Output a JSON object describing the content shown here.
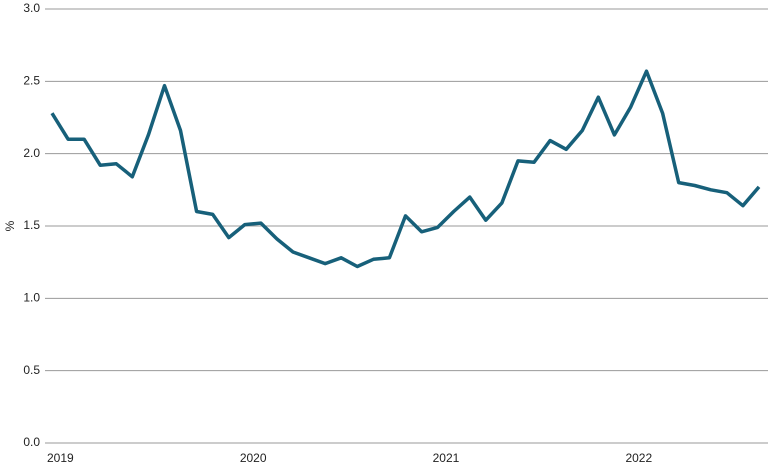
{
  "chart_data": {
    "type": "line",
    "y_label": "%",
    "categories": [
      "2019",
      null,
      null,
      null,
      null,
      null,
      null,
      null,
      null,
      null,
      null,
      null,
      "2020",
      null,
      null,
      null,
      null,
      null,
      null,
      null,
      null,
      null,
      null,
      null,
      "2021",
      null,
      null,
      null,
      null,
      null,
      null,
      null,
      null,
      null,
      null,
      null,
      "2022",
      null,
      null,
      null,
      null,
      null,
      null,
      null,
      null
    ],
    "series": [
      {
        "color": "#17607a",
        "values": [
          2.28,
          2.1,
          2.1,
          1.92,
          1.93,
          1.84,
          2.13,
          2.47,
          2.16,
          1.6,
          1.58,
          1.42,
          1.51,
          1.52,
          1.41,
          1.32,
          1.28,
          1.24,
          1.28,
          1.22,
          1.27,
          1.28,
          1.57,
          1.46,
          1.49,
          1.6,
          1.7,
          1.54,
          1.66,
          1.95,
          1.94,
          2.09,
          2.03,
          2.16,
          2.39,
          2.13,
          2.32,
          2.57,
          2.28,
          1.8,
          1.78,
          1.75,
          1.73,
          1.64,
          1.77
        ]
      }
    ],
    "ylim": [
      0,
      3
    ],
    "yticks": [
      {
        "value": 0,
        "label": "0.0"
      },
      {
        "value": 0.5,
        "label": "0.5"
      },
      {
        "value": 1,
        "label": "1.0"
      },
      {
        "value": 1.5,
        "label": "1.5"
      },
      {
        "value": 2,
        "label": "2.0"
      },
      {
        "value": 2.5,
        "label": "2.5"
      },
      {
        "value": 3,
        "label": "3.0"
      }
    ],
    "grid": true
  }
}
